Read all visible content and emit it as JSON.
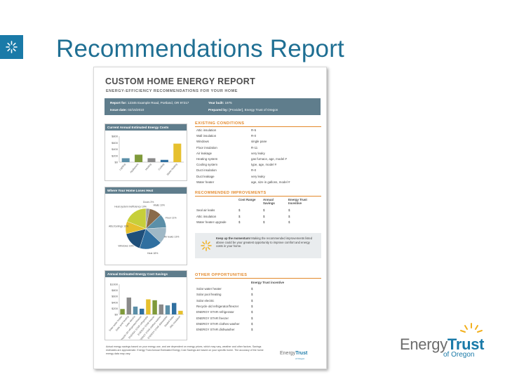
{
  "slide": {
    "title": "Recommendations Report"
  },
  "report": {
    "title": "CUSTOM HOME ENERGY REPORT",
    "subtitle": "ENERGY-EFFICIENCY RECOMMENDATIONS FOR YOUR HOME",
    "info": {
      "report_for": "Report for:",
      "report_for_value": "12345 Example Road, Portland, OR 97217",
      "issue_date": "Issue date:",
      "issue_date_value": "02/15/2010",
      "year_built": "Year built:",
      "year_built_value": "1975",
      "prepared_by": "Prepared by:",
      "prepared_by_value": "[Provider], Energy Trust of Oregon"
    },
    "panels": {
      "annual_costs": {
        "title": "Current Annual Estimated Energy Costs",
        "y_ticks": [
          "$800",
          "$600",
          "$400",
          "$200",
          "$0"
        ],
        "categories": [
          "Lighting",
          "Appliances",
          "Heating",
          "Cooling",
          "Water heating"
        ],
        "values": [
          120,
          230,
          120,
          70,
          570
        ]
      },
      "heat_loss": {
        "title": "Where Your Home Loses Heat",
        "labels": [
          "Doors 3%",
          "Walls 10%",
          "Floor 11%",
          "Air leaks 13%",
          "Heat 18%",
          "Windows 16%",
          "Attic/Ceilings 10%",
          "Heat system inefficiency 19%"
        ],
        "values": [
          3,
          10,
          11,
          13,
          18,
          16,
          10,
          19
        ]
      },
      "savings": {
        "title": "Annual Estimated Energy Cost Savings",
        "y_ticks": [
          "$1000",
          "$800",
          "$600",
          "$400",
          "$200",
          "$0"
        ],
        "categories": [
          "Solar water heater",
          "Solar pool heating",
          "Solar electric",
          "Recycle old refrigerator/freezer",
          "ENERGY STAR refrigerator",
          "ENERGY STAR freezer",
          "ENERGY STAR clothes washer",
          "ENERGY STAR dishwasher",
          "Sealed leaks",
          "Attic insulation"
        ],
        "values": [
          180,
          560,
          260,
          190,
          500,
          470,
          330,
          300,
          380,
          120
        ]
      }
    },
    "existing": {
      "heading": "EXISTING CONDITIONS",
      "rows": [
        {
          "k": "Attic insulation",
          "v": "R-5"
        },
        {
          "k": "Wall insulation",
          "v": "R-0"
        },
        {
          "k": "Windows",
          "v": "single pane"
        },
        {
          "k": "Floor insulation",
          "v": "R-11"
        },
        {
          "k": "Air leakage",
          "v": "very leaky"
        },
        {
          "k": "Heating system",
          "v": "gas furnace, age, model #"
        },
        {
          "k": "Cooling system",
          "v": "type, age, model #"
        },
        {
          "k": "Duct insulation",
          "v": "R-0"
        },
        {
          "k": "Duct leakage",
          "v": "very leaky"
        },
        {
          "k": "Water heater",
          "v": "age, size in gallons, model #"
        }
      ]
    },
    "improvements": {
      "heading": "RECOMMENDED IMPROVEMENTS",
      "cols": [
        "Cost Range",
        "Annual Savings",
        "Energy Trust Incentive"
      ],
      "rows": [
        {
          "k": "Seal air leaks",
          "a": "$",
          "b": "$",
          "c": "$"
        },
        {
          "k": "Attic insulation",
          "a": "$",
          "b": "$",
          "c": "$"
        },
        {
          "k": "Water heater upgrade",
          "a": "$",
          "b": "$",
          "c": "$"
        }
      ]
    },
    "callout": {
      "lead": "Keep up the momentum!",
      "text": " Making the recommended improvements listed above could be your greatest opportunity to improve comfort and energy costs in your home."
    },
    "other": {
      "heading": "OTHER OPPORTUNITIES",
      "col": "Energy Trust incentive",
      "rows": [
        {
          "k": "Solar water heater",
          "v": "$"
        },
        {
          "k": "Solar pool heating",
          "v": "$"
        },
        {
          "k": "Solar electric",
          "v": "$"
        },
        {
          "k": "Recycle old refrigerator/freezer",
          "v": "$"
        },
        {
          "k": "ENERGY STAR refrigerator",
          "v": "$"
        },
        {
          "k": "ENERGY STAR freezer",
          "v": "$"
        },
        {
          "k": "ENERGY STAR clothes washer",
          "v": "$"
        },
        {
          "k": "ENERGY STAR dishwasher",
          "v": "$"
        }
      ]
    },
    "disclaimer": "Actual energy savings based on your energy use, and are dependent on energy prices, which may vary, weather and other factors. Savings estimates are approximate. Energy Trust Annual Estimated Energy Cost Savings are based on your specific home. The accuracy of the home energy data may vary.",
    "logo": {
      "energy": "Energy",
      "trust": "Trust",
      "sub": "of Oregon"
    }
  },
  "brand": {
    "energy": "Energy",
    "trust": "Trust",
    "oregon": "of Oregon"
  },
  "colors": {
    "accent": "#1a7aa8",
    "band": "#5f7d8c",
    "orange": "#e3892b",
    "logo_yellow": "#f2b01e"
  }
}
